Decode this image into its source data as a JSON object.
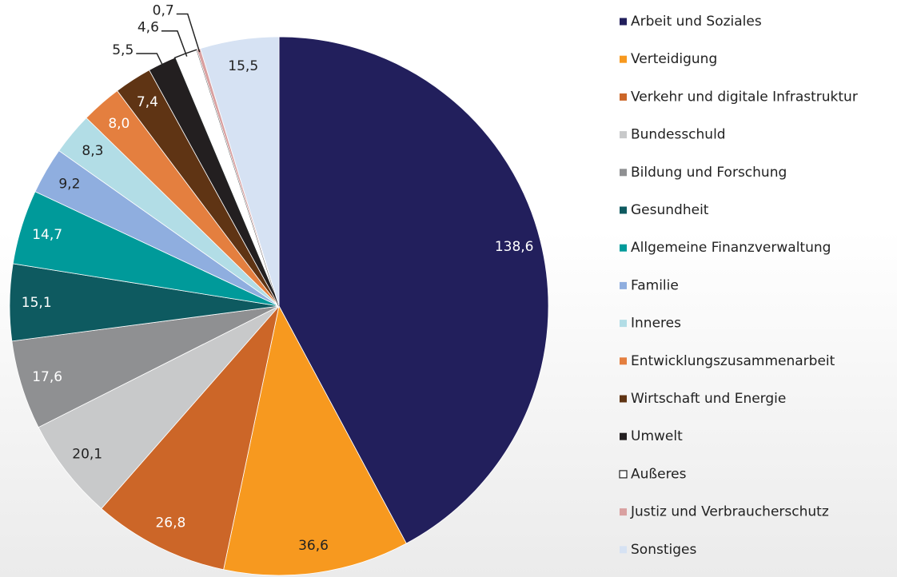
{
  "chart_data": {
    "type": "pie",
    "categories": [
      "Arbeit und Soziales",
      "Verteidigung",
      "Verkehr und digitale Infrastruktur",
      "Bundesschuld",
      "Bildung und Forschung",
      "Gesundheit",
      "Allgemeine Finanzverwaltung",
      "Familie",
      "Inneres",
      "Entwicklungszusammenarbeit",
      "Wirtschaft und Energie",
      "Umwelt",
      "Außeres",
      "Justiz und Verbraucherschutz",
      "Sonstiges"
    ],
    "values": [
      138.6,
      36.6,
      26.8,
      20.1,
      17.6,
      15.1,
      14.7,
      9.2,
      8.3,
      8.0,
      7.4,
      5.5,
      4.6,
      0.7,
      15.5
    ],
    "value_labels": [
      "138,6",
      "36,6",
      "26,8",
      "20,1",
      "17,6",
      "15,1",
      "14,7",
      "9,2",
      "8,3",
      "8,0",
      "7,4",
      "5,5",
      "4,6",
      "0,7",
      "15,5"
    ],
    "colors": [
      "#221f5c",
      "#f7991f",
      "#cc6628",
      "#c8c9ca",
      "#8f9092",
      "#0e5a60",
      "#009a9a",
      "#8faedf",
      "#b2dde6",
      "#e47f3f",
      "#5f3414",
      "#231f20",
      "#ffffff",
      "#d9a0a0",
      "#d6e2f3"
    ],
    "legend": "right"
  }
}
